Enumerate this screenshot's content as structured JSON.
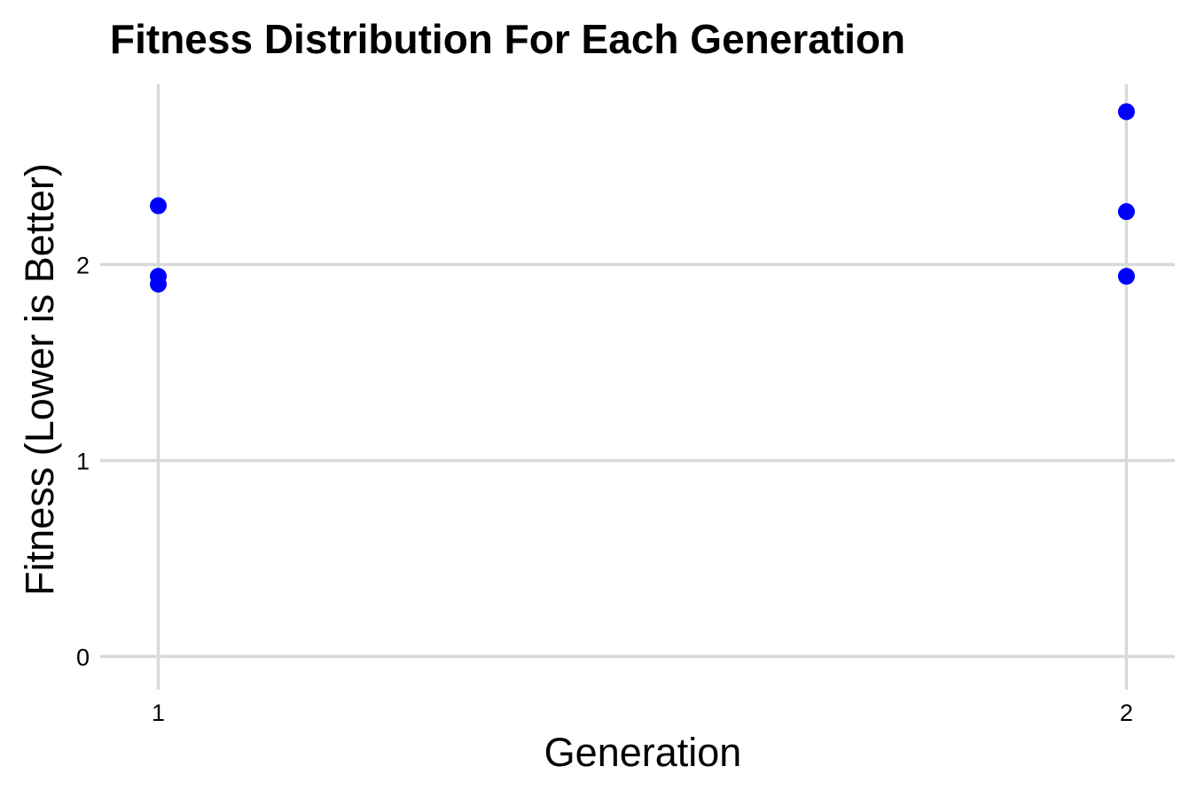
{
  "chart_data": {
    "type": "scatter",
    "title": "Fitness Distribution For Each Generation",
    "xlabel": "Generation",
    "ylabel": "Fitness (Lower is Better)",
    "x_ticks": [
      1,
      2
    ],
    "y_ticks": [
      0,
      1,
      2
    ],
    "xlim": [
      0.94,
      2.05
    ],
    "ylim": [
      -0.17,
      2.92
    ],
    "grid": true,
    "marker_color": "#0000ff",
    "points": [
      {
        "x": 1,
        "y": 2.3
      },
      {
        "x": 1,
        "y": 1.94
      },
      {
        "x": 1,
        "y": 1.9
      },
      {
        "x": 2,
        "y": 2.78
      },
      {
        "x": 2,
        "y": 2.27
      },
      {
        "x": 2,
        "y": 1.94
      }
    ]
  }
}
